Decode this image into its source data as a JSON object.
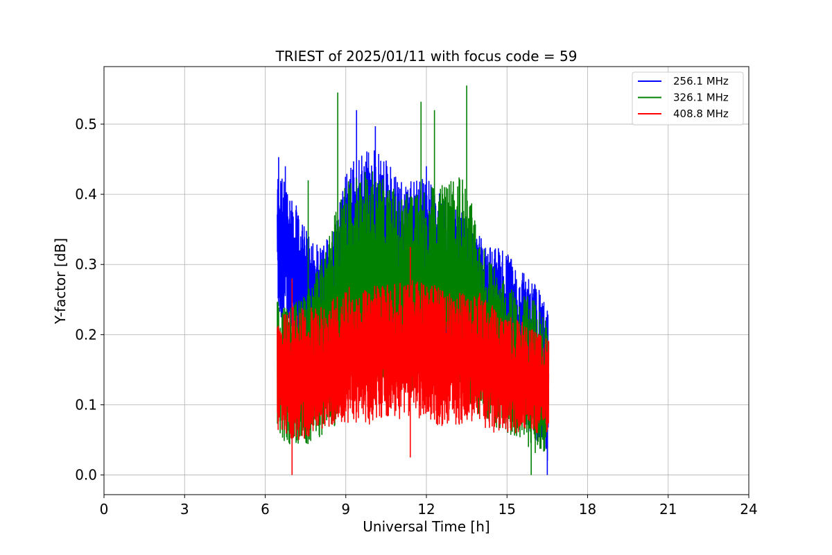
{
  "chart_data": {
    "type": "line",
    "title": "TRIEST of 2025/01/11 with focus code = 59",
    "xlabel": "Universal Time [h]",
    "ylabel": "Y-factor [dB]",
    "xlim": [
      0,
      24
    ],
    "ylim": [
      -0.028,
      0.582
    ],
    "xticks": [
      0,
      3,
      6,
      9,
      12,
      15,
      18,
      21,
      24
    ],
    "yticks": [
      0.0,
      0.1,
      0.2,
      0.3,
      0.4,
      0.5
    ],
    "ytick_labels": [
      "0.0",
      "0.1",
      "0.2",
      "0.3",
      "0.4",
      "0.5"
    ],
    "grid": true,
    "legend_position": "top-right",
    "x_range_data": [
      6.45,
      16.55
    ],
    "series": [
      {
        "name": "256.1 MHz",
        "color": "#0000ff",
        "envelope": {
          "x": [
            6.45,
            7.0,
            7.5,
            8.0,
            8.5,
            9.0,
            9.5,
            10.0,
            10.5,
            11.0,
            11.5,
            12.0,
            12.5,
            13.0,
            13.5,
            14.0,
            14.5,
            15.0,
            15.5,
            16.0,
            16.5
          ],
          "upper": [
            0.44,
            0.4,
            0.35,
            0.33,
            0.34,
            0.44,
            0.46,
            0.47,
            0.45,
            0.43,
            0.42,
            0.43,
            0.4,
            0.38,
            0.37,
            0.34,
            0.33,
            0.32,
            0.29,
            0.28,
            0.24
          ],
          "lower": [
            0.22,
            0.2,
            0.19,
            0.17,
            0.16,
            0.16,
            0.16,
            0.16,
            0.16,
            0.17,
            0.18,
            0.18,
            0.17,
            0.16,
            0.15,
            0.14,
            0.12,
            0.1,
            0.08,
            0.05,
            0.02
          ]
        },
        "peaks": [
          [
            6.5,
            0.453
          ],
          [
            9.4,
            0.52
          ],
          [
            10.1,
            0.497
          ],
          [
            12.0,
            0.44
          ],
          [
            6.75,
            0.44
          ],
          [
            16.5,
            0.0
          ]
        ]
      },
      {
        "name": "326.1 MHz",
        "color": "#008000",
        "envelope": {
          "x": [
            6.45,
            7.0,
            7.5,
            8.0,
            8.5,
            9.0,
            9.5,
            10.0,
            10.5,
            11.0,
            11.5,
            12.0,
            12.5,
            13.0,
            13.5,
            14.0,
            14.5,
            15.0,
            15.5,
            16.0,
            16.5
          ],
          "upper": [
            0.25,
            0.24,
            0.26,
            0.3,
            0.36,
            0.42,
            0.43,
            0.44,
            0.42,
            0.4,
            0.4,
            0.41,
            0.41,
            0.43,
            0.42,
            0.33,
            0.3,
            0.27,
            0.26,
            0.25,
            0.22
          ],
          "lower": [
            0.05,
            0.04,
            0.04,
            0.05,
            0.06,
            0.12,
            0.14,
            0.13,
            0.12,
            0.12,
            0.12,
            0.12,
            0.12,
            0.12,
            0.11,
            0.08,
            0.07,
            0.06,
            0.05,
            0.03,
            0.03
          ]
        },
        "peaks": [
          [
            8.7,
            0.545
          ],
          [
            13.5,
            0.555
          ],
          [
            11.8,
            0.532
          ],
          [
            12.3,
            0.52
          ],
          [
            7.6,
            0.42
          ],
          [
            15.9,
            0.0
          ]
        ]
      },
      {
        "name": "408.8 MHz",
        "color": "#ff0000",
        "envelope": {
          "x": [
            6.45,
            7.0,
            7.5,
            8.0,
            8.5,
            9.0,
            9.5,
            10.0,
            10.5,
            11.0,
            11.5,
            12.0,
            12.5,
            13.0,
            13.5,
            14.0,
            14.5,
            15.0,
            15.5,
            16.0,
            16.5
          ],
          "upper": [
            0.22,
            0.24,
            0.24,
            0.24,
            0.25,
            0.27,
            0.26,
            0.27,
            0.27,
            0.28,
            0.28,
            0.27,
            0.27,
            0.26,
            0.26,
            0.26,
            0.24,
            0.23,
            0.22,
            0.21,
            0.2
          ],
          "lower": [
            0.06,
            0.05,
            0.05,
            0.06,
            0.07,
            0.07,
            0.07,
            0.07,
            0.08,
            0.08,
            0.08,
            0.08,
            0.07,
            0.07,
            0.07,
            0.07,
            0.06,
            0.06,
            0.06,
            0.06,
            0.06
          ]
        },
        "peaks": [
          [
            7.0,
            0.0
          ],
          [
            11.4,
            0.325
          ],
          [
            11.4,
            0.025
          ],
          [
            7.0,
            0.28
          ]
        ]
      }
    ]
  }
}
